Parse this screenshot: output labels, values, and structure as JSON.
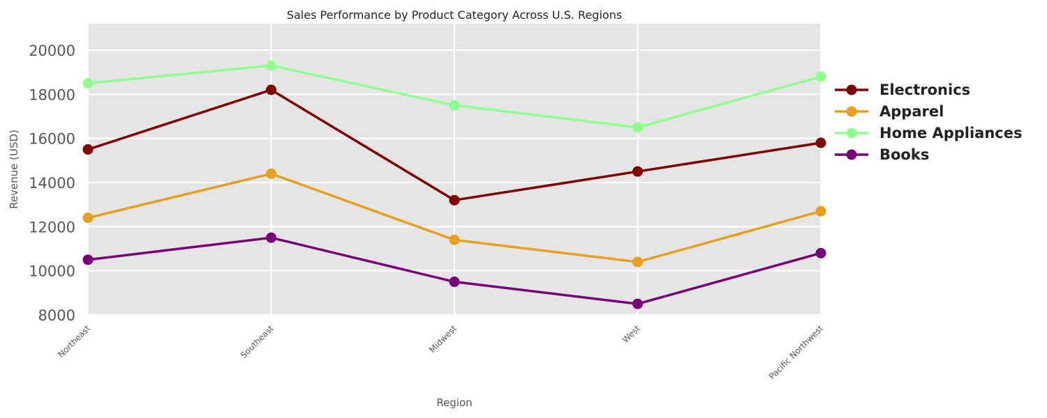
{
  "chart_data": {
    "type": "line",
    "title": "Sales Performance by Product Category Across U.S. Regions",
    "xlabel": "Region",
    "ylabel": "Revenue (USD)",
    "categories": [
      "Northeast",
      "Southeast",
      "Midwest",
      "West",
      "Pacific Northwest"
    ],
    "ylim": [
      8000,
      21200
    ],
    "yticks": [
      8000,
      10000,
      12000,
      14000,
      16000,
      18000,
      20000
    ],
    "grid": true,
    "legend_position": "right",
    "series": [
      {
        "name": "Electronics",
        "color": "#800000",
        "values": [
          15500,
          18200,
          13200,
          14500,
          15800
        ]
      },
      {
        "name": "Apparel",
        "color": "#E89F1D",
        "values": [
          12400,
          14400,
          11400,
          10400,
          12700
        ]
      },
      {
        "name": "Home Appliances",
        "color": "#8FFF8F",
        "values": [
          18500,
          19300,
          17500,
          16500,
          18800
        ]
      },
      {
        "name": "Books",
        "color": "#780078",
        "values": [
          10500,
          11500,
          9500,
          8500,
          10800
        ]
      }
    ]
  }
}
